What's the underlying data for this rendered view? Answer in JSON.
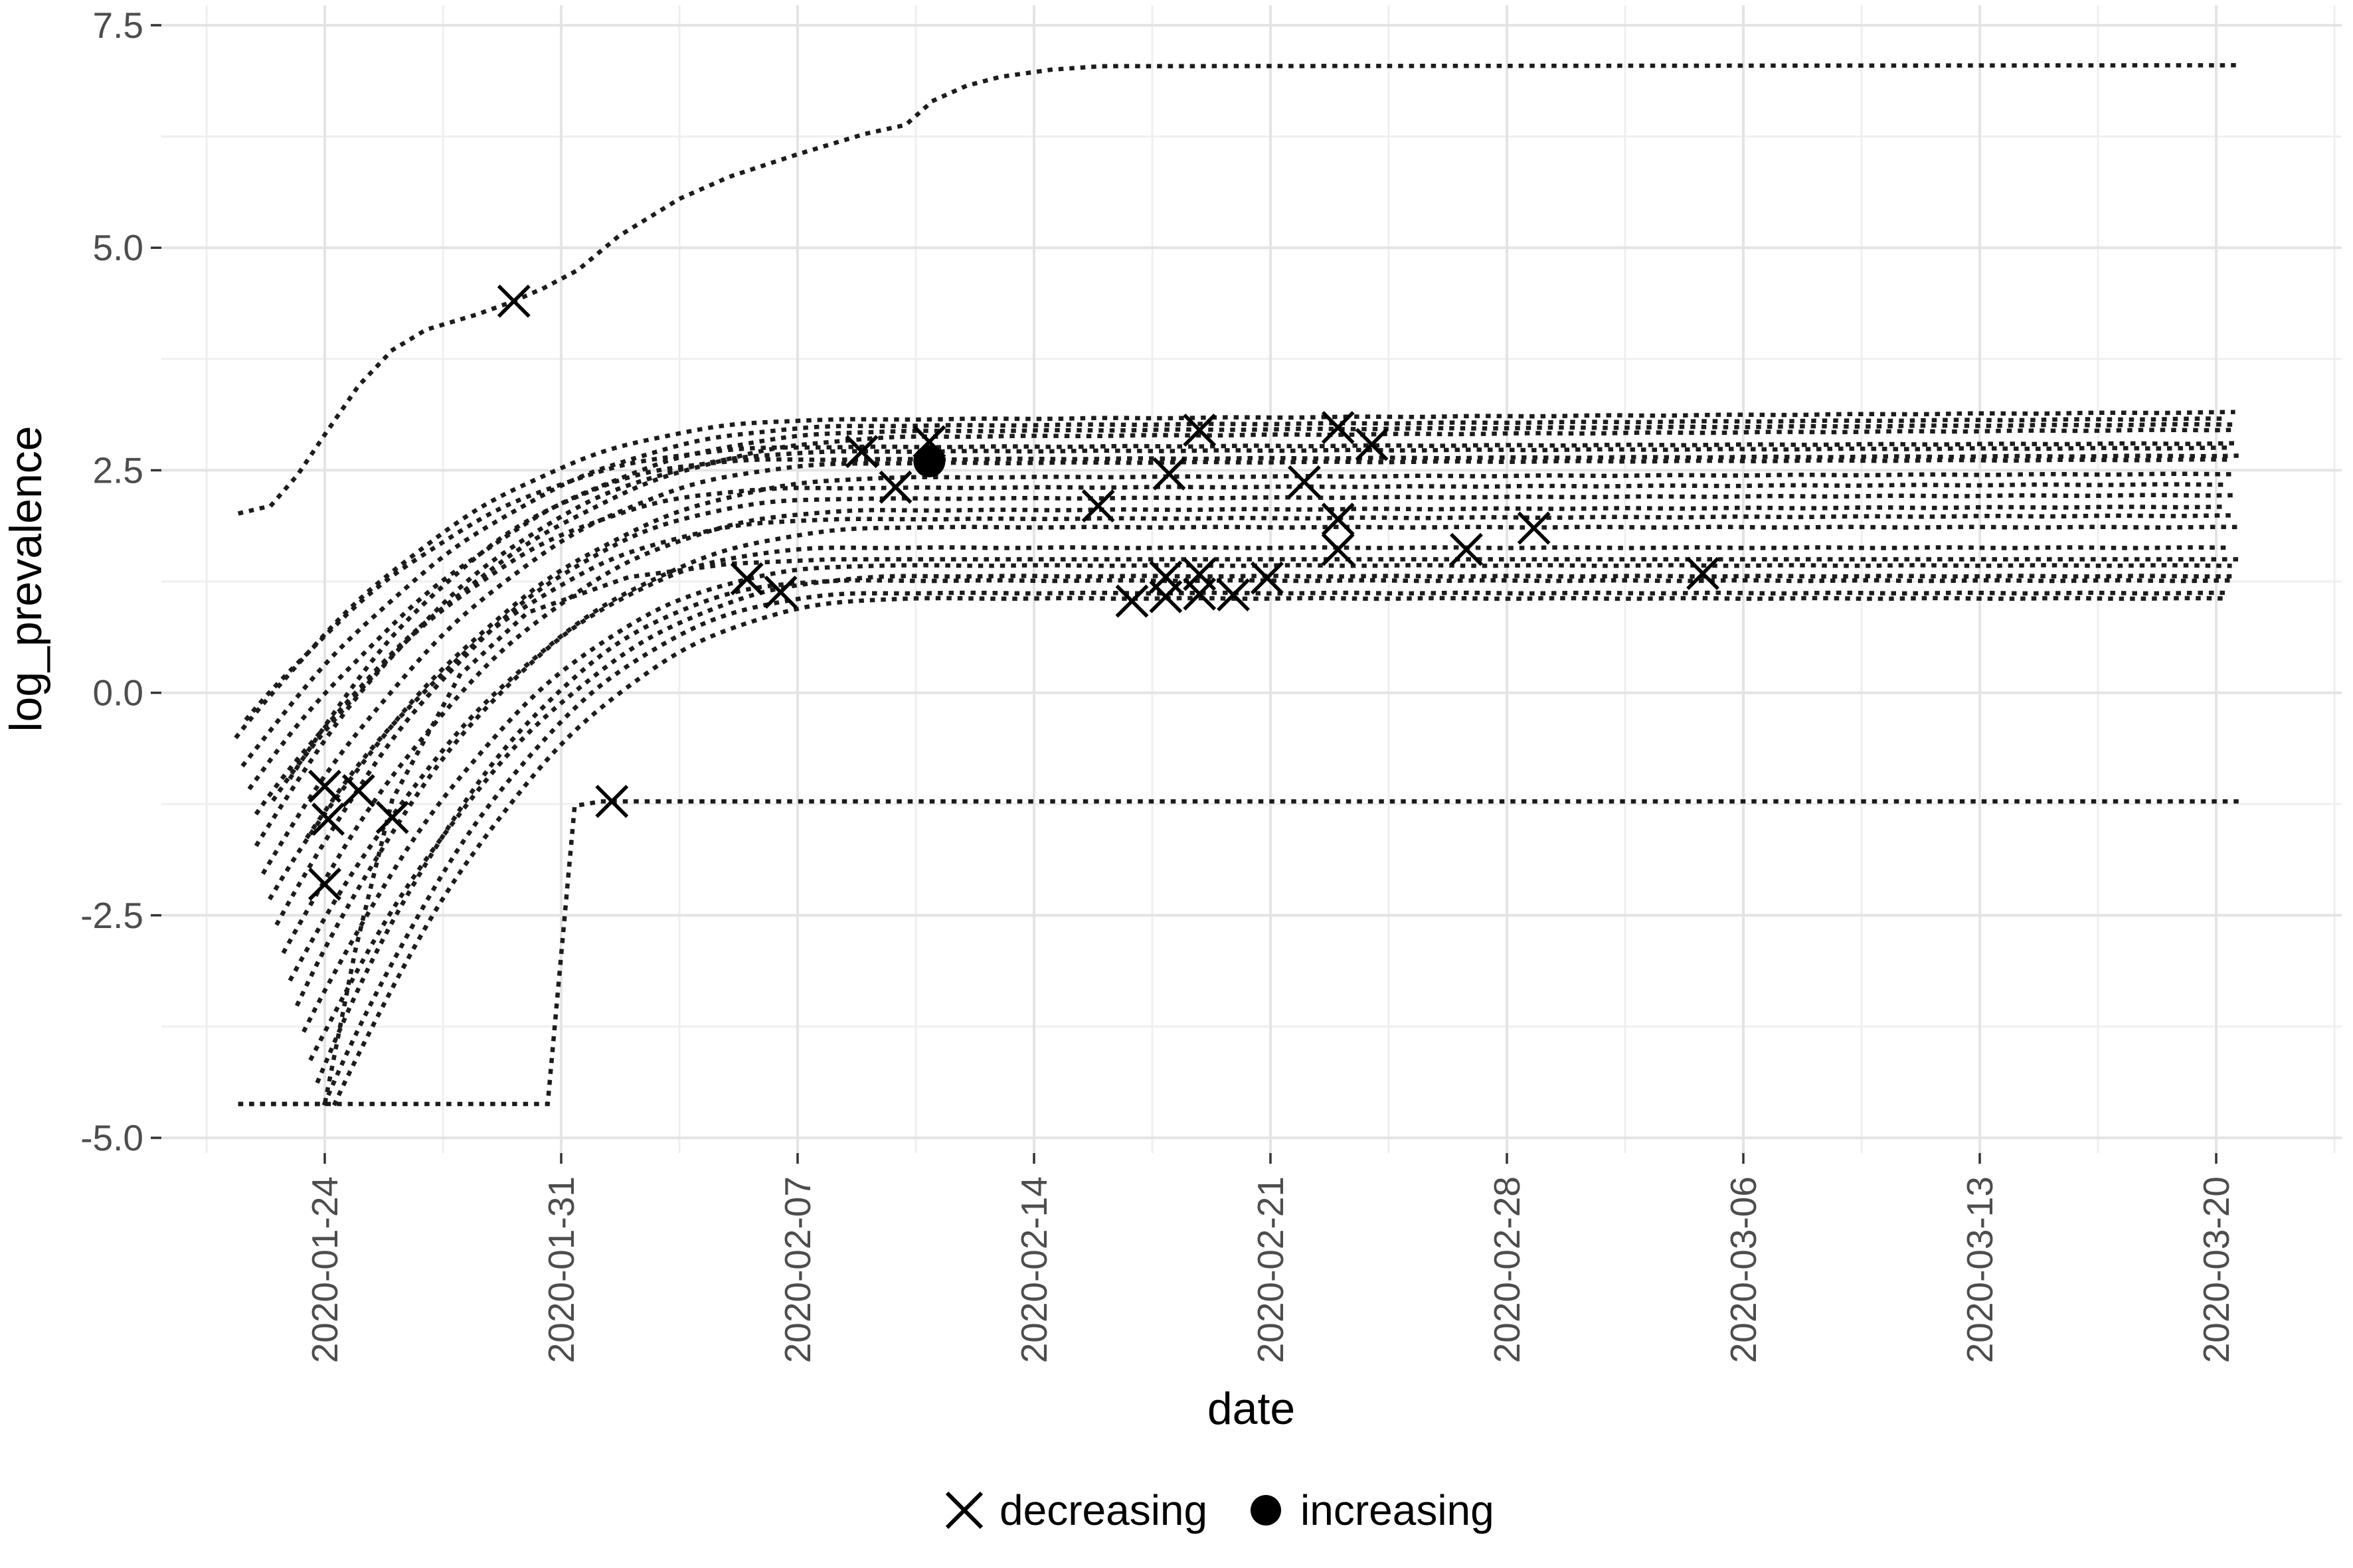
{
  "figure": {
    "background_color": "#ffffff",
    "grid_major_color": "#e4e4e4",
    "grid_minor_color": "#efefef",
    "line_color": "#1c1c1c",
    "tick_mark_color": "#333333",
    "tick_label_color": "#4d4d4d",
    "legend_items": [
      {
        "label": "decreasing",
        "marker": "x-icon"
      },
      {
        "label": "increasing",
        "marker": "filled-circle-icon"
      }
    ]
  },
  "chart_data": {
    "type": "line",
    "title": "",
    "xlabel": "date",
    "ylabel": "log_prevalence",
    "line_style": "dotted",
    "grid": "on",
    "legend_position": "bottom-center",
    "x_tick_labels": [
      "2020-01-24",
      "2020-01-31",
      "2020-02-07",
      "2020-02-14",
      "2020-02-21",
      "2020-02-28",
      "2020-03-06",
      "2020-03-13",
      "2020-03-20"
    ],
    "x_tick_days": [
      0,
      7,
      14,
      21,
      28,
      35,
      42,
      49,
      56
    ],
    "x_minor_days": [
      -3.5,
      3.5,
      10.5,
      17.5,
      24.5,
      31.5,
      38.5,
      45.5,
      52.5,
      59.5
    ],
    "y_tick_labels": [
      "7.5",
      "5.0",
      "2.5",
      "0.0",
      "-2.5",
      "-5.0"
    ],
    "y_ticks": [
      7.5,
      5.0,
      2.5,
      0.0,
      -2.5,
      -5.0
    ],
    "y_minor_ticks": [
      6.25,
      3.75,
      1.25,
      -1.25,
      -3.75
    ],
    "ylim": [
      -5.45,
      7.72
    ],
    "x_domain_days": [
      -4.85,
      59.7
    ],
    "x_day_zero_date": "2020-01-24",
    "data_end_day": 56.6,
    "sigmoid_trajectories": [
      {
        "start_day": -2.6,
        "start_val": -0.5,
        "plateau_day": 16,
        "plateau_val": 3.07,
        "drift": 0.002
      },
      {
        "start_day": -2.4,
        "start_val": -0.8,
        "plateau_day": 17,
        "plateau_val": 3.0,
        "drift": 0.002
      },
      {
        "start_day": -2.2,
        "start_val": -1.05,
        "plateau_day": 18,
        "plateau_val": 2.94,
        "drift": 0.002
      },
      {
        "start_day": -2.0,
        "start_val": -1.35,
        "plateau_day": 19,
        "plateau_val": 2.88,
        "drift": 0.002
      },
      {
        "start_day": -2.3,
        "start_val": -0.3,
        "plateau_day": 15,
        "plateau_val": 2.76,
        "drift": 0.001
      },
      {
        "start_day": -2.0,
        "start_val": -1.7,
        "plateau_day": 16,
        "plateau_val": 2.71,
        "drift": 0.001
      },
      {
        "start_day": -1.8,
        "start_val": -2.0,
        "plateau_day": 17,
        "plateau_val": 2.58,
        "drift": 0.001
      },
      {
        "start_day": -1.6,
        "start_val": -2.3,
        "plateau_day": 18,
        "plateau_val": 2.42,
        "drift": 0.001
      },
      {
        "start_day": -1.4,
        "start_val": -2.6,
        "plateau_day": 16,
        "plateau_val": 2.18,
        "drift": 0.001
      },
      {
        "start_day": -1.2,
        "start_val": -2.9,
        "plateau_day": 17,
        "plateau_val": 2.05,
        "drift": 0.001
      },
      {
        "start_day": -1.0,
        "start_val": -3.2,
        "plateau_day": 18,
        "plateau_val": 1.86,
        "drift": 0
      },
      {
        "start_day": -0.8,
        "start_val": -3.5,
        "plateau_day": 16,
        "plateau_val": 1.63,
        "drift": 0
      },
      {
        "start_day": -0.6,
        "start_val": -3.8,
        "plateau_day": 17,
        "plateau_val": 1.43,
        "drift": 0
      },
      {
        "start_day": -0.4,
        "start_val": -4.1,
        "plateau_day": 18,
        "plateau_val": 1.31,
        "drift": 0
      },
      {
        "start_day": -0.2,
        "start_val": -4.35,
        "plateau_day": 16,
        "plateau_val": 1.26,
        "drift": 0
      },
      {
        "start_day": 0.0,
        "start_val": -4.62,
        "plateau_day": 17,
        "plateau_val": 1.12,
        "drift": 0
      },
      {
        "start_day": 0.3,
        "start_val": -4.62,
        "plateau_day": 18,
        "plateau_val": 1.06,
        "drift": 0
      },
      {
        "start_day": -1.5,
        "start_val": -1.2,
        "plateau_day": 15,
        "plateau_val": 2.3,
        "drift": 0.001
      },
      {
        "start_day": -1.0,
        "start_val": -0.95,
        "plateau_day": 14,
        "plateau_val": 2.62,
        "drift": 0.001
      },
      {
        "start_day": -0.5,
        "start_val": -1.6,
        "plateau_day": 16,
        "plateau_val": 1.95,
        "drift": 0.001
      }
    ],
    "piecewise_trajectories": [
      {
        "name": "top-trajectory-plateau-7",
        "points": [
          [
            -2.5,
            2.02
          ],
          [
            -1.6,
            2.1
          ],
          [
            -0.8,
            2.45
          ],
          [
            0,
            2.9
          ],
          [
            1,
            3.45
          ],
          [
            2,
            3.85
          ],
          [
            3,
            4.08
          ],
          [
            4.5,
            4.25
          ],
          [
            5.6,
            4.4
          ],
          [
            6.5,
            4.55
          ],
          [
            7.5,
            4.75
          ],
          [
            8.7,
            5.13
          ],
          [
            10.5,
            5.55
          ],
          [
            12,
            5.8
          ],
          [
            14,
            6.05
          ],
          [
            16,
            6.28
          ],
          [
            17.2,
            6.38
          ],
          [
            18,
            6.65
          ],
          [
            19,
            6.82
          ],
          [
            20,
            6.92
          ],
          [
            21.5,
            7.0
          ],
          [
            23,
            7.04
          ],
          [
            56.6,
            7.05
          ]
        ]
      },
      {
        "name": "bottom-flat-trajectory-minus-1.22",
        "points": [
          [
            -2.5,
            -4.62
          ],
          [
            6.6,
            -4.62
          ],
          [
            7.4,
            -1.27
          ],
          [
            8.2,
            -1.22
          ],
          [
            56.6,
            -1.22
          ]
        ]
      },
      {
        "name": "early-shelf-riser",
        "points": [
          [
            -2.5,
            -4.62
          ],
          [
            0,
            -4.62
          ],
          [
            0.9,
            -2.9
          ],
          [
            2,
            -1.2
          ],
          [
            4,
            0.2
          ],
          [
            6,
            0.9
          ],
          [
            9,
            1.3
          ],
          [
            12,
            1.45
          ],
          [
            15,
            1.5
          ],
          [
            56.6,
            1.5
          ]
        ]
      }
    ],
    "markers": {
      "decreasing": [
        {
          "date": "2020-01-24",
          "day": 0.0,
          "value": -1.05
        },
        {
          "date": "2020-01-24",
          "day": 0.1,
          "value": -1.42
        },
        {
          "date": "2020-01-25",
          "day": 1.0,
          "value": -1.1
        },
        {
          "date": "2020-01-26",
          "day": 2.0,
          "value": -1.4
        },
        {
          "date": "2020-01-24",
          "day": 0.0,
          "value": -2.15
        },
        {
          "date": "2020-01-29",
          "day": 5.6,
          "value": 4.4
        },
        {
          "date": "2020-02-01",
          "day": 8.5,
          "value": -1.22
        },
        {
          "date": "2020-02-05",
          "day": 12.5,
          "value": 1.28
        },
        {
          "date": "2020-02-06",
          "day": 13.5,
          "value": 1.13
        },
        {
          "date": "2020-02-08",
          "day": 15.9,
          "value": 2.71
        },
        {
          "date": "2020-02-09",
          "day": 16.9,
          "value": 2.31
        },
        {
          "date": "2020-02-10",
          "day": 17.9,
          "value": 2.82
        },
        {
          "date": "2020-02-15",
          "day": 22.9,
          "value": 2.1
        },
        {
          "date": "2020-02-16",
          "day": 23.9,
          "value": 1.03
        },
        {
          "date": "2020-02-17",
          "day": 24.9,
          "value": 1.3
        },
        {
          "date": "2020-02-17",
          "day": 24.9,
          "value": 1.08
        },
        {
          "date": "2020-02-18",
          "day": 25.9,
          "value": 1.33
        },
        {
          "date": "2020-02-18",
          "day": 25.9,
          "value": 1.11
        },
        {
          "date": "2020-02-19",
          "day": 26.9,
          "value": 1.1
        },
        {
          "date": "2020-02-20",
          "day": 27.9,
          "value": 1.29
        },
        {
          "date": "2020-02-18",
          "day": 25.9,
          "value": 2.95
        },
        {
          "date": "2020-02-18",
          "day": 25.0,
          "value": 2.46
        },
        {
          "date": "2020-02-22",
          "day": 29.0,
          "value": 2.37
        },
        {
          "date": "2020-02-23",
          "day": 30.0,
          "value": 2.98
        },
        {
          "date": "2020-02-24",
          "day": 31.0,
          "value": 2.79
        },
        {
          "date": "2020-02-23",
          "day": 30.0,
          "value": 1.95
        },
        {
          "date": "2020-02-23",
          "day": 30.0,
          "value": 1.61
        },
        {
          "date": "2020-02-26",
          "day": 33.8,
          "value": 1.61
        },
        {
          "date": "2020-02-28",
          "day": 35.8,
          "value": 1.85
        },
        {
          "date": "2020-03-04",
          "day": 40.8,
          "value": 1.34
        }
      ],
      "increasing": [
        {
          "date": "2020-02-11",
          "day": 17.9,
          "value": 2.6
        }
      ]
    }
  }
}
